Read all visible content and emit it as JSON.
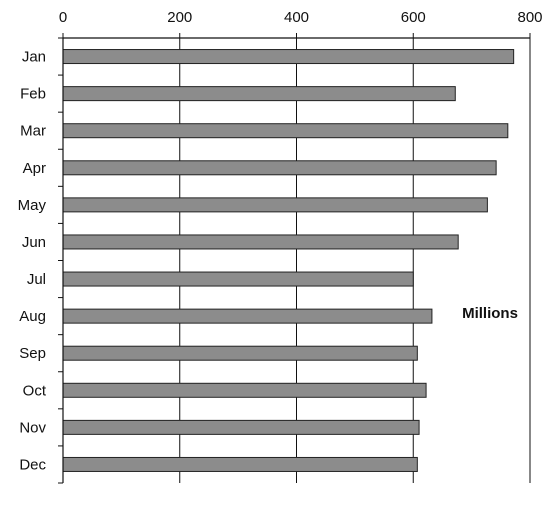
{
  "chart_data": {
    "type": "bar",
    "orientation": "horizontal",
    "categories": [
      "Jan",
      "Feb",
      "Mar",
      "Apr",
      "May",
      "Jun",
      "Jul",
      "Aug",
      "Sep",
      "Oct",
      "Nov",
      "Dec"
    ],
    "values": [
      772,
      672,
      762,
      742,
      727,
      677,
      600,
      632,
      607,
      622,
      610,
      607
    ],
    "title": "",
    "xlabel": "Millions",
    "ylabel": "",
    "xlim": [
      0,
      800
    ],
    "xticks": [
      0,
      200,
      400,
      600,
      800
    ],
    "xtick_labels": [
      "0",
      "200",
      "400",
      "600",
      "800"
    ],
    "x_axis_position": "top",
    "grid": true,
    "bar_color": "#8c8c8c",
    "legend": "none"
  }
}
